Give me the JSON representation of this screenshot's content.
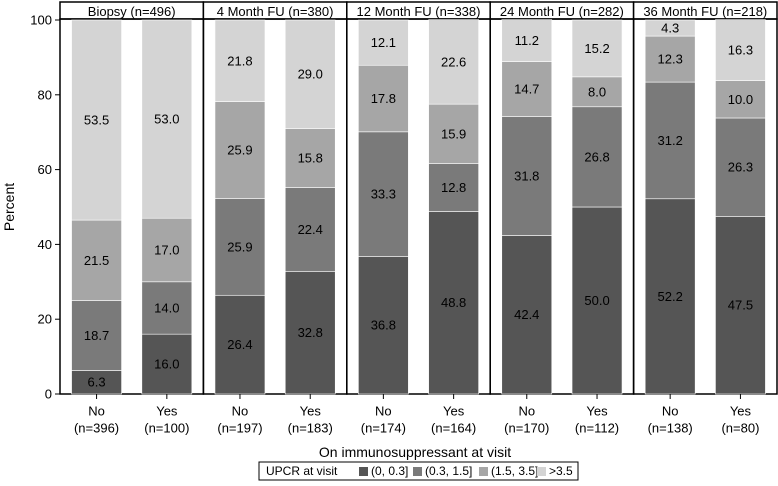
{
  "chart_data": {
    "type": "bar",
    "stacked": true,
    "percent": true,
    "ylabel": "Percent",
    "xlabel": "On immunosuppressant at visit",
    "ylim": [
      0,
      100
    ],
    "yticks": [
      0,
      20,
      40,
      60,
      80,
      100
    ],
    "legend": {
      "title": "UPCR at visit",
      "placement": "bottom",
      "entries": [
        {
          "label": "(0, 0.3]",
          "color": "#555555"
        },
        {
          "label": "(0.3, 1.5]",
          "color": "#7a7a7a"
        },
        {
          "label": "(1.5, 3.5]",
          "color": "#a6a6a6"
        },
        {
          "label": ">3.5",
          "color": "#d4d4d4"
        }
      ]
    },
    "panels": [
      {
        "title": "Biopsy (n=496)",
        "bars": [
          {
            "label": "No",
            "n": "(n=396)",
            "values": [
              6.3,
              18.7,
              21.5,
              53.5
            ],
            "labels": [
              "6.3",
              "18.7",
              "21.5",
              "53.5"
            ]
          },
          {
            "label": "Yes",
            "n": "(n=100)",
            "values": [
              16.0,
              14.0,
              17.0,
              53.0
            ],
            "labels": [
              "16.0",
              "14.0",
              "17.0",
              "53.0"
            ]
          }
        ]
      },
      {
        "title": "4 Month FU (n=380)",
        "bars": [
          {
            "label": "No",
            "n": "(n=197)",
            "values": [
              26.4,
              25.9,
              25.9,
              21.8
            ],
            "labels": [
              "26.4",
              "25.9",
              "25.9",
              "21.8"
            ]
          },
          {
            "label": "Yes",
            "n": "(n=183)",
            "values": [
              32.8,
              22.4,
              15.8,
              29.0
            ],
            "labels": [
              "32.8",
              "22.4",
              "15.8",
              "29.0"
            ]
          }
        ]
      },
      {
        "title": "12 Month FU (n=338)",
        "bars": [
          {
            "label": "No",
            "n": "(n=174)",
            "values": [
              36.8,
              33.3,
              17.8,
              12.1
            ],
            "labels": [
              "36.8",
              "33.3",
              "17.8",
              "12.1"
            ]
          },
          {
            "label": "Yes",
            "n": "(n=164)",
            "values": [
              48.8,
              12.8,
              15.9,
              22.6
            ],
            "labels": [
              "48.8",
              "12.8",
              "15.9",
              "22.6"
            ]
          }
        ]
      },
      {
        "title": "24 Month FU (n=282)",
        "bars": [
          {
            "label": "No",
            "n": "(n=170)",
            "values": [
              42.4,
              31.8,
              14.7,
              11.2
            ],
            "labels": [
              "42.4",
              "31.8",
              "14.7",
              "11.2"
            ]
          },
          {
            "label": "Yes",
            "n": "(n=112)",
            "values": [
              50.0,
              26.8,
              8.0,
              15.2
            ],
            "labels": [
              "50.0",
              "26.8",
              "8.0",
              "15.2"
            ]
          }
        ]
      },
      {
        "title": "36 Month FU (n=218)",
        "bars": [
          {
            "label": "No",
            "n": "(n=138)",
            "values": [
              52.2,
              31.2,
              12.3,
              4.3
            ],
            "labels": [
              "52.2",
              "31.2",
              "12.3",
              "4.3"
            ]
          },
          {
            "label": "Yes",
            "n": "(n=80)",
            "values": [
              47.5,
              26.3,
              10.0,
              16.3
            ],
            "labels": [
              "47.5",
              "26.3",
              "10.0",
              "16.3"
            ]
          }
        ]
      }
    ]
  }
}
